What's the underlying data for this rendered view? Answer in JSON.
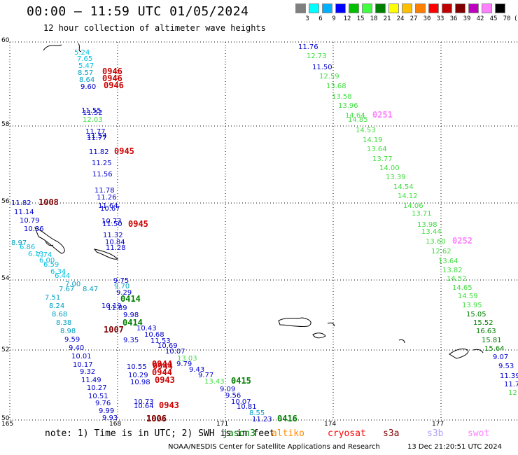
{
  "header": {
    "title": "00:00 — 11:59 UTC 01/05/2024",
    "subtitle": "12 hour collection of altimeter wave heights"
  },
  "scale": {
    "labels": [
      "3",
      "6",
      "9",
      "12",
      "15",
      "18",
      "21",
      "24",
      "27",
      "30",
      "33",
      "36",
      "39",
      "42",
      "45",
      "70",
      "(ft)"
    ],
    "colors": [
      "#7f7f7f",
      "#00ffff",
      "#00b0ff",
      "#0000ff",
      "#00c000",
      "#40ff40",
      "#008000",
      "#ffff00",
      "#ffc000",
      "#ff8000",
      "#ff0000",
      "#c00000",
      "#800000",
      "#c000c0",
      "#ff80ff",
      "#000000"
    ]
  },
  "axes": {
    "lat_labels": [
      "60",
      "58",
      "56",
      "54",
      "52",
      "50"
    ],
    "lon_labels": [
      "165",
      "168",
      "171",
      "174",
      "177"
    ]
  },
  "footer": {
    "note": "note:  1) Time is in UTC;  2) SWH is in feet",
    "satellites": [
      {
        "name": "jason3",
        "color": "#008000"
      },
      {
        "name": "altiko",
        "color": "#ff8c00"
      },
      {
        "name": "cryosat",
        "color": "#ff0000"
      },
      {
        "name": "s3a",
        "color": "#800000"
      },
      {
        "name": "s3b",
        "color": "#b0a0ff"
      },
      {
        "name": "swot",
        "color": "#ff80ff"
      }
    ],
    "credit": "NOAA/NESDIS Center for Satellite Applications and Research",
    "stamp": "13 Dec 21:20:51 UTC 2024"
  },
  "tracks": [
    {
      "time": "0946",
      "color": "#cc0000",
      "labels": [
        {
          "v": "5.24",
          "c": "#00c0e0"
        },
        {
          "v": "7.65",
          "c": "#00c0e0"
        },
        {
          "v": "5.47",
          "c": "#00c0e0"
        },
        {
          "v": "8.57",
          "c": "#00a0c0"
        },
        {
          "v": "8.64",
          "c": "#00a0c0"
        },
        {
          "v": "9.60",
          "c": "#0000cc"
        }
      ]
    },
    {
      "time": "0945",
      "color": "#cc0000",
      "labels": [
        {
          "v": "11.55",
          "c": "#0000cc"
        },
        {
          "v": "11.52",
          "c": "#0000cc"
        },
        {
          "v": "12.03",
          "c": "#40dd40"
        },
        {
          "v": "11.77",
          "c": "#0000cc"
        },
        {
          "v": "11.54",
          "c": "#0000cc"
        },
        {
          "v": "11.77",
          "c": "#0000cc"
        },
        {
          "v": "11.82",
          "c": "#0000cc"
        },
        {
          "v": "11.25",
          "c": "#0000cc"
        },
        {
          "v": "11.56",
          "c": "#0000cc"
        },
        {
          "v": "11.78",
          "c": "#0000cc"
        },
        {
          "v": "11.26",
          "c": "#0000cc"
        },
        {
          "v": "11.64",
          "c": "#0000cc"
        },
        {
          "v": "10.67",
          "c": "#0000cc"
        }
      ]
    },
    {
      "time": "1008",
      "color": "#800000",
      "labels": [
        {
          "v": "11.82",
          "c": "#0000cc"
        },
        {
          "v": "11.14",
          "c": "#0000cc"
        },
        {
          "v": "10.79",
          "c": "#0000cc"
        },
        {
          "v": "10.36",
          "c": "#0000cc"
        },
        {
          "v": "8.97",
          "c": "#00a0c0"
        },
        {
          "v": "6.86",
          "c": "#00c0e0"
        },
        {
          "v": "6.13",
          "c": "#00c0e0"
        }
      ]
    },
    {
      "time": "0251",
      "color": "#ff80ff",
      "labels": [
        {
          "v": "11.76",
          "c": "#0000cc"
        },
        {
          "v": "12.73",
          "c": "#40dd40"
        },
        {
          "v": "11.50",
          "c": "#0000cc"
        },
        {
          "v": "12.59",
          "c": "#40dd40"
        },
        {
          "v": "13.68",
          "c": "#40dd40"
        },
        {
          "v": "13.58",
          "c": "#40dd40"
        },
        {
          "v": "13.96",
          "c": "#40dd40"
        },
        {
          "v": "14.64",
          "c": "#40dd40"
        },
        {
          "v": "14.85",
          "c": "#40dd40"
        },
        {
          "v": "14.53",
          "c": "#40dd40"
        },
        {
          "v": "14.19",
          "c": "#40dd40"
        },
        {
          "v": "13.64",
          "c": "#40dd40"
        },
        {
          "v": "13.77",
          "c": "#40dd40"
        },
        {
          "v": "14.00",
          "c": "#40dd40"
        },
        {
          "v": "13.39",
          "c": "#40dd40"
        },
        {
          "v": "14.54",
          "c": "#40dd40"
        },
        {
          "v": "14.12",
          "c": "#40dd40"
        },
        {
          "v": "14.06",
          "c": "#40dd40"
        },
        {
          "v": "13.71",
          "c": "#40dd40"
        },
        {
          "v": "13.98",
          "c": "#40dd40"
        },
        {
          "v": "13.44",
          "c": "#40dd40"
        }
      ]
    },
    {
      "time": "0252",
      "color": "#ff80ff",
      "labels": [
        {
          "v": "13.60",
          "c": "#40dd40"
        },
        {
          "v": "12.62",
          "c": "#40dd40"
        },
        {
          "v": "13.64",
          "c": "#40dd40"
        },
        {
          "v": "13.82",
          "c": "#40dd40"
        },
        {
          "v": "14.52",
          "c": "#40dd40"
        },
        {
          "v": "14.65",
          "c": "#40dd40"
        },
        {
          "v": "14.59",
          "c": "#40dd40"
        },
        {
          "v": "13.95",
          "c": "#40dd40"
        },
        {
          "v": "15.05",
          "c": "#008000"
        },
        {
          "v": "15.52",
          "c": "#008000"
        },
        {
          "v": "16.63",
          "c": "#008000"
        },
        {
          "v": "15.81",
          "c": "#008000"
        },
        {
          "v": "15.64",
          "c": "#008000"
        },
        {
          "v": "9.07",
          "c": "#0000cc"
        },
        {
          "v": "9.53",
          "c": "#0000cc"
        },
        {
          "v": "11.39",
          "c": "#0000cc"
        },
        {
          "v": "11.7",
          "c": "#0000cc"
        },
        {
          "v": "12",
          "c": "#40dd40"
        }
      ]
    },
    {
      "time": "0945",
      "color": "#cc0000",
      "labels": [
        {
          "v": "10.73",
          "c": "#0000cc"
        },
        {
          "v": "11.50",
          "c": "#0000cc"
        },
        {
          "v": "11.32",
          "c": "#0000cc"
        },
        {
          "v": "10.84",
          "c": "#0000cc"
        },
        {
          "v": "11.28",
          "c": "#0000cc"
        }
      ]
    },
    {
      "time": "0414",
      "color": "#008000",
      "labels": [
        {
          "v": "9.75",
          "c": "#0000cc"
        },
        {
          "v": "9.70",
          "c": "#00a0c0"
        },
        {
          "v": "9.29",
          "c": "#0000cc"
        },
        {
          "v": "10.19",
          "c": "#0000cc"
        },
        {
          "v": "11.89",
          "c": "#0000cc"
        },
        {
          "v": "9.98",
          "c": "#0000cc"
        },
        {
          "v": "10.43",
          "c": "#0000cc"
        },
        {
          "v": "10.68",
          "c": "#0000cc"
        },
        {
          "v": "11.53",
          "c": "#0000cc"
        },
        {
          "v": "10.69",
          "c": "#0000cc"
        },
        {
          "v": "10.07",
          "c": "#0000cc"
        },
        {
          "v": "9.79",
          "c": "#0000cc"
        },
        {
          "v": "9.43",
          "c": "#0000cc"
        },
        {
          "v": "9.77",
          "c": "#0000cc"
        },
        {
          "v": "9.35",
          "c": "#0000cc"
        }
      ]
    },
    {
      "time": "1007",
      "color": "#800000",
      "labels": [
        {
          "v": "7.74",
          "c": "#00c0e0"
        },
        {
          "v": "6.00",
          "c": "#00c0e0"
        },
        {
          "v": "6.59",
          "c": "#00c0e0"
        },
        {
          "v": "6.34",
          "c": "#00c0e0"
        },
        {
          "v": "6.44",
          "c": "#00c0e0"
        },
        {
          "v": "7.00",
          "c": "#00a0c0"
        },
        {
          "v": "7.67",
          "c": "#00a0c0"
        },
        {
          "v": "8.47",
          "c": "#00a0c0"
        },
        {
          "v": "7.51",
          "c": "#00a0c0"
        },
        {
          "v": "8.24",
          "c": "#00a0c0"
        },
        {
          "v": "8.68",
          "c": "#00a0c0"
        },
        {
          "v": "8.38",
          "c": "#00a0c0"
        },
        {
          "v": "8.98",
          "c": "#00a0c0"
        },
        {
          "v": "9.59",
          "c": "#0000cc"
        },
        {
          "v": "9.40",
          "c": "#0000cc"
        },
        {
          "v": "10.01",
          "c": "#0000cc"
        },
        {
          "v": "10.17",
          "c": "#0000cc"
        },
        {
          "v": "9.32",
          "c": "#0000cc"
        },
        {
          "v": "11.49",
          "c": "#0000cc"
        },
        {
          "v": "10.27",
          "c": "#0000cc"
        },
        {
          "v": "10.51",
          "c": "#0000cc"
        },
        {
          "v": "9.76",
          "c": "#0000cc"
        },
        {
          "v": "9.99",
          "c": "#0000cc"
        },
        {
          "v": "9.93",
          "c": "#0000cc"
        }
      ]
    },
    {
      "time": "0944",
      "color": "#cc0000",
      "labels": [
        {
          "v": "10.55",
          "c": "#0000cc"
        },
        {
          "v": "10.29",
          "c": "#0000cc"
        },
        {
          "v": "10.98",
          "c": "#0000cc"
        }
      ]
    },
    {
      "time": "0943",
      "color": "#cc0000",
      "labels": [
        {
          "v": "10.73",
          "c": "#0000cc"
        },
        {
          "v": "10.64",
          "c": "#0000cc"
        }
      ]
    },
    {
      "time": "0415",
      "color": "#008000",
      "labels": [
        {
          "v": "13.03",
          "c": "#40dd40"
        },
        {
          "v": "13.43",
          "c": "#40dd40"
        },
        {
          "v": "9.09",
          "c": "#0000cc"
        },
        {
          "v": "9.56",
          "c": "#0000cc"
        },
        {
          "v": "10.07",
          "c": "#0000cc"
        },
        {
          "v": "10.81",
          "c": "#0000cc"
        },
        {
          "v": "8.55",
          "c": "#00a0c0"
        },
        {
          "v": "11.23",
          "c": "#0000cc"
        }
      ]
    },
    {
      "time": "0416",
      "color": "#008000",
      "labels": []
    },
    {
      "time": "1006",
      "color": "#800000",
      "labels": []
    },
    {
      "time": "0944",
      "color": "#cc0000",
      "labels": []
    },
    {
      "time": "0943",
      "color": "#cc0000",
      "labels": []
    },
    {
      "time": "0944",
      "color": "#cc0000",
      "labels": []
    },
    {
      "time": "0946",
      "color": "#cc0000",
      "labels": []
    },
    {
      "time": "0946",
      "color": "#cc0000",
      "labels": []
    },
    {
      "time": "0414",
      "color": "#008000",
      "labels": []
    },
    {
      "time": "1006",
      "color": "#800000",
      "labels": []
    }
  ]
}
